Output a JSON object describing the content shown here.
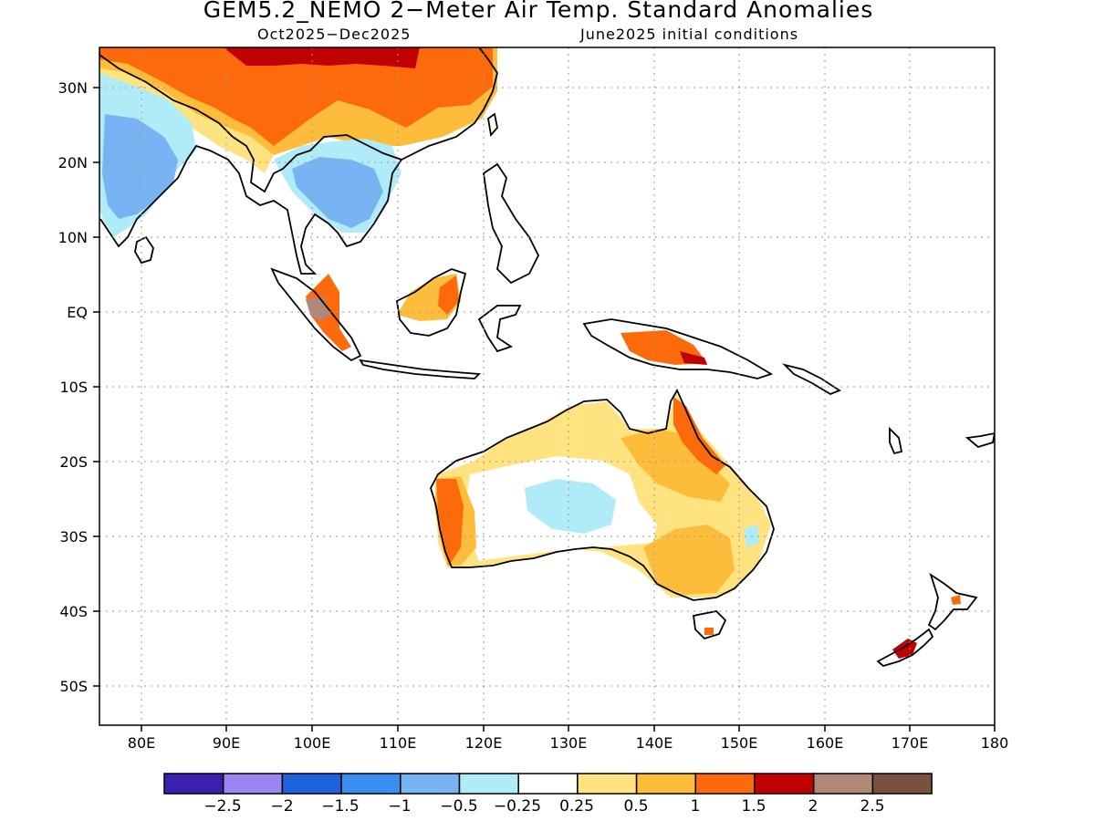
{
  "title": "GEM5.2_NEMO 2−Meter Air Temp. Standard Anomalies",
  "period": "Oct2025−Dec2025",
  "init": "June2025 initial conditions",
  "colors": {
    "land_outline": "#000000",
    "grid": "#999999",
    "anomaly_scale": [
      "#3b1fb0",
      "#9b85f2",
      "#1e62e0",
      "#3a8ff0",
      "#78b4f4",
      "#b0ecf7",
      "#ffffff",
      "#ffe381",
      "#fdbd3b",
      "#fd6a0c",
      "#c30000",
      "#b08878",
      "#7a5040"
    ]
  },
  "map": {
    "lon_labels": [
      "80E",
      "90E",
      "100E",
      "110E",
      "120E",
      "130E",
      "140E",
      "150E",
      "160E",
      "170E",
      "180"
    ],
    "lat_labels": [
      "30N",
      "20N",
      "10N",
      "EQ",
      "10S",
      "20S",
      "30S",
      "40S",
      "50S"
    ]
  },
  "colorbar": {
    "labels": [
      "−2.5",
      "−2",
      "−1.5",
      "−1",
      "−0.5",
      "−0.25",
      "0.25",
      "0.5",
      "1",
      "1.5",
      "2",
      "2.5"
    ]
  },
  "icons": [
    "coastline-outlines"
  ]
}
